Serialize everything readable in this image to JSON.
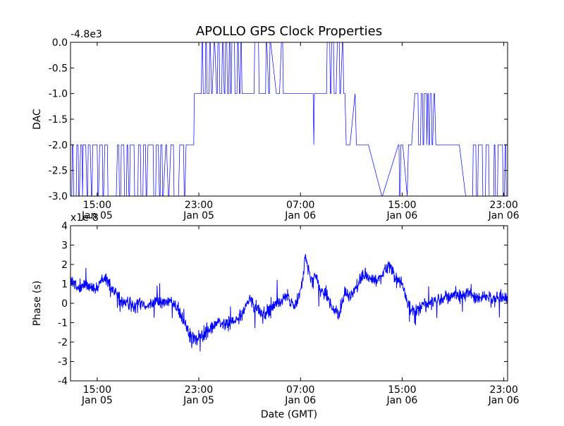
{
  "chart_data": {
    "title": "APOLLO GPS Clock Properties",
    "xlabel": "Date (GMT)",
    "x_ticks": [
      {
        "t": 15,
        "time": "15:00",
        "date": "Jan 05"
      },
      {
        "t": 23,
        "time": "23:00",
        "date": "Jan 05"
      },
      {
        "t": 31,
        "time": "07:00",
        "date": "Jan 06"
      },
      {
        "t": 39,
        "time": "15:00",
        "date": "Jan 06"
      },
      {
        "t": 47,
        "time": "23:00",
        "date": "Jan 06"
      }
    ],
    "xlim_hours": [
      12.9,
      47.3
    ],
    "panels": [
      {
        "id": "dac",
        "type": "line",
        "ylabel": "DAC",
        "offset_label": "-4.8e3",
        "ylim": [
          -3.0,
          0.0
        ],
        "yticks": [
          "0.0",
          "-0.5",
          "-1.0",
          "-1.5",
          "-2.0",
          "-2.5",
          "-3.0"
        ],
        "ytick_values": [
          0.0,
          -0.5,
          -1.0,
          -1.5,
          -2.0,
          -2.5,
          -3.0
        ],
        "series": {
          "name": "DAC",
          "color": "#0000ff",
          "x_hours": [
            12.9,
            13.0,
            13.05,
            13.1,
            13.15,
            13.35,
            13.4,
            13.5,
            13.55,
            13.6,
            13.7,
            13.8,
            13.85,
            13.9,
            14.1,
            14.2,
            14.25,
            14.3,
            14.45,
            14.55,
            14.6,
            14.65,
            14.8,
            15.0,
            15.05,
            15.1,
            15.2,
            15.4,
            15.45,
            15.5,
            15.6,
            15.8,
            15.85,
            15.9,
            16.5,
            16.6,
            16.7,
            16.75,
            16.85,
            16.9,
            17.1,
            17.15,
            17.3,
            17.35,
            17.4,
            17.5,
            17.55,
            17.6,
            17.9,
            17.95,
            18.2,
            18.25,
            18.4,
            18.45,
            18.6,
            18.65,
            18.8,
            18.85,
            18.9,
            19.0,
            19.05,
            19.4,
            19.45,
            19.6,
            19.65,
            19.8,
            19.9,
            19.95,
            20.0,
            20.1,
            20.15,
            20.2,
            20.4,
            20.45,
            20.6,
            20.65,
            20.8,
            20.85,
            21.0,
            21.05,
            21.1,
            21.4,
            21.5,
            21.55,
            21.6,
            21.8,
            21.85,
            21.9,
            22.0,
            22.05,
            22.35,
            22.4,
            22.6,
            22.65,
            22.7,
            22.8,
            22.85,
            23.2,
            23.25,
            23.3,
            23.35,
            23.5,
            23.55,
            23.6,
            23.65,
            23.8,
            23.85,
            23.9,
            24.0,
            24.05,
            24.2,
            24.25,
            24.4,
            24.45,
            24.5,
            24.6,
            24.65,
            24.8,
            24.85,
            24.9,
            25.0,
            25.05,
            25.1,
            25.2,
            25.25,
            25.35,
            25.4,
            25.45,
            25.5,
            25.55,
            25.6,
            25.8,
            25.85,
            26.0,
            26.05,
            26.1,
            26.2,
            26.25,
            26.3,
            26.35,
            26.4,
            27.0,
            27.05,
            27.35,
            27.4,
            27.7,
            27.75,
            28.2,
            28.25,
            28.3,
            28.35,
            28.5,
            28.55,
            28.6,
            28.65,
            29.1,
            29.3,
            29.35,
            29.5,
            29.55,
            29.6,
            29.65,
            29.8,
            30.5,
            31.0,
            31.6,
            31.65,
            32.0,
            32.05,
            32.1,
            32.15,
            32.3,
            33.05,
            33.1,
            33.3,
            33.35,
            33.4,
            33.45,
            33.6,
            33.65,
            33.75,
            33.8,
            33.9,
            34.0,
            34.05,
            34.1,
            34.15,
            34.3,
            34.35,
            34.4,
            34.45,
            34.5,
            34.6,
            34.65,
            34.9,
            35.3,
            35.4,
            36.3,
            36.35,
            37.4,
            37.45,
            38.7,
            38.75,
            38.8,
            38.85,
            38.9,
            38.95,
            39.0,
            39.05,
            39.4,
            39.5,
            39.55,
            39.65,
            39.7,
            39.75,
            40.0,
            40.25,
            40.3,
            40.45,
            40.5,
            40.6,
            40.65,
            40.7,
            40.75,
            40.9,
            40.95,
            41.0,
            41.05,
            41.1,
            41.15,
            41.2,
            41.3,
            41.35,
            41.4,
            41.5,
            41.55,
            41.65,
            41.7,
            42.0,
            43.0,
            43.5,
            44.0,
            44.55,
            44.6,
            44.8,
            44.85,
            44.95,
            45.0,
            45.3,
            45.35,
            45.55,
            45.6,
            45.8,
            45.85,
            46.2,
            46.25,
            46.3,
            46.35,
            46.5,
            46.55,
            46.9,
            46.95,
            47.05,
            47.1,
            47.15,
            47.2,
            47.3
          ],
          "values": [
            -3.0,
            -3.0,
            -2.0,
            -2.0,
            -3.0,
            -3.0,
            -2.0,
            -2.0,
            -3.0,
            -3.0,
            -2.0,
            -2.0,
            -3.0,
            -2.0,
            -2.0,
            -3.0,
            -3.0,
            -2.0,
            -2.0,
            -3.0,
            -3.0,
            -2.0,
            -2.0,
            -2.0,
            -3.0,
            -3.0,
            -2.0,
            -2.0,
            -3.0,
            -3.0,
            -2.0,
            -2.0,
            -3.0,
            -3.0,
            -3.0,
            -2.0,
            -2.0,
            -3.0,
            -3.0,
            -2.0,
            -2.0,
            -3.0,
            -3.0,
            -2.0,
            -2.0,
            -3.0,
            -3.0,
            -2.0,
            -2.0,
            -3.0,
            -3.0,
            -2.0,
            -2.0,
            -3.0,
            -3.0,
            -2.0,
            -2.0,
            -3.0,
            -3.0,
            -2.0,
            -2.0,
            -2.0,
            -3.0,
            -3.0,
            -2.0,
            -2.0,
            -3.0,
            -3.0,
            -2.0,
            -2.0,
            -3.0,
            -3.0,
            -2.0,
            -2.0,
            -3.0,
            -3.0,
            -2.0,
            -2.0,
            -2.0,
            -3.0,
            -3.0,
            -3.0,
            -2.0,
            -2.0,
            -2.0,
            -2.0,
            -3.0,
            -3.0,
            -2.0,
            -2.0,
            -2.0,
            -2.0,
            -2.0,
            -1.0,
            -1.0,
            -1.0,
            -1.0,
            -1.0,
            0.0,
            0.0,
            -1.0,
            -1.0,
            0.0,
            0.0,
            -1.0,
            -1.0,
            0.0,
            0.0,
            -1.0,
            -1.0,
            0.0,
            0.0,
            -1.0,
            -1.0,
            0.0,
            0.0,
            -1.0,
            -1.0,
            0.0,
            0.0,
            -1.0,
            -1.0,
            0.0,
            0.0,
            -1.0,
            -1.0,
            0.0,
            0.0,
            -1.0,
            -1.0,
            0.0,
            0.0,
            -1.0,
            -1.0,
            0.0,
            0.0,
            -1.0,
            -1.0,
            0.0,
            0.0,
            -1.0,
            -1.0,
            -1.0,
            -1.0,
            0.0,
            0.0,
            -1.0,
            -1.0,
            -1.0,
            0.0,
            0.0,
            -1.0,
            -1.0,
            0.0,
            0.0,
            -1.0,
            -1.0,
            -1.0,
            0.0,
            0.0,
            0.0,
            -1.0,
            -1.0,
            -1.0,
            -1.0,
            -1.0,
            -1.0,
            -1.0,
            -2.0,
            -1.0,
            -1.0,
            -1.0,
            -1.0,
            0.0,
            0.0,
            -1.0,
            -1.0,
            0.0,
            0.0,
            -1.0,
            -1.0,
            -1.0,
            0.0,
            0.0,
            0.0,
            -1.0,
            -1.0,
            0.0,
            0.0,
            -1.0,
            -1.0,
            -1.0,
            -2.0,
            -2.0,
            -2.0,
            -1.0,
            -2.0,
            -2.0,
            -2.0,
            -3.0,
            -3.0,
            -2.0,
            -2.0,
            -3.0,
            -3.0,
            -2.0,
            -2.0,
            -2.0,
            -2.0,
            -3.0,
            -2.0,
            -2.0,
            -2.0,
            -2.0,
            -2.0,
            -1.0,
            -1.0,
            -2.0,
            -2.0,
            -1.0,
            -1.0,
            -2.0,
            -2.0,
            -1.0,
            -1.0,
            -2.0,
            -1.0,
            -1.0,
            -2.0,
            -2.0,
            -1.0,
            -1.0,
            -2.0,
            -2.0,
            -1.0,
            -1.0,
            -2.0,
            -2.0,
            -2.0,
            -2.0,
            -2.0,
            -3.0,
            -3.0,
            -2.0,
            -2.0,
            -3.0,
            -3.0,
            -2.0,
            -2.0,
            -3.0,
            -3.0,
            -2.0,
            -2.0,
            -3.0,
            -3.0,
            -2.0,
            -2.0,
            -3.0,
            -3.0,
            -2.0,
            -2.0,
            -3.0,
            -3.0,
            -2.0,
            -2.0,
            -3.0,
            -3.0
          ]
        }
      },
      {
        "id": "phase",
        "type": "line",
        "ylabel": "Phase (s)",
        "offset_label": "x1e-8",
        "ylim": [
          -4,
          4
        ],
        "yticks": [
          "4",
          "3",
          "2",
          "1",
          "0",
          "-1",
          "-2",
          "-3",
          "-4"
        ],
        "ytick_values": [
          4,
          3,
          2,
          1,
          0,
          -1,
          -2,
          -3,
          -4
        ],
        "series": {
          "name": "Phase",
          "color": "#0000ff",
          "trend_x_hours": [
            12.9,
            13.3,
            13.7,
            14.2,
            14.6,
            15.0,
            15.5,
            16.0,
            16.5,
            17.0,
            17.5,
            18.0,
            18.5,
            19.0,
            19.5,
            20.0,
            20.5,
            21.0,
            21.5,
            22.0,
            22.5,
            23.0,
            23.5,
            24.0,
            24.5,
            25.0,
            25.5,
            26.0,
            26.5,
            27.0,
            27.5,
            28.0,
            28.5,
            29.0,
            29.5,
            30.0,
            30.5,
            31.0,
            31.4,
            31.8,
            32.2,
            32.6,
            33.0,
            33.5,
            34.0,
            34.5,
            35.0,
            35.5,
            36.0,
            36.5,
            37.0,
            37.5,
            38.0,
            38.5,
            39.0,
            39.5,
            40.0,
            40.5,
            41.0,
            41.5,
            42.0,
            42.5,
            43.0,
            43.5,
            44.0,
            44.5,
            45.0,
            45.5,
            46.0,
            46.5,
            47.0,
            47.3
          ],
          "trend_values": [
            1.3,
            0.9,
            0.8,
            1.0,
            0.7,
            0.8,
            1.3,
            1.0,
            0.5,
            0.2,
            0.0,
            -0.1,
            0.0,
            -0.2,
            0.1,
            0.0,
            0.1,
            0.0,
            -0.4,
            -1.3,
            -1.9,
            -1.7,
            -1.5,
            -1.2,
            -1.0,
            -1.1,
            -0.9,
            -1.0,
            -0.4,
            0.3,
            -0.2,
            -0.6,
            -0.4,
            0.0,
            0.2,
            0.3,
            -0.2,
            0.6,
            2.4,
            1.3,
            1.5,
            0.6,
            0.5,
            -0.3,
            -0.6,
            0.6,
            0.4,
            1.0,
            1.5,
            1.2,
            1.2,
            1.5,
            2.0,
            1.3,
            1.0,
            -0.1,
            -0.5,
            -0.1,
            0.0,
            0.2,
            0.2,
            0.4,
            0.4,
            0.4,
            0.5,
            0.5,
            0.3,
            0.4,
            0.2,
            0.3,
            0.2,
            0.3
          ],
          "noise_amplitude": 0.3
        }
      }
    ]
  }
}
